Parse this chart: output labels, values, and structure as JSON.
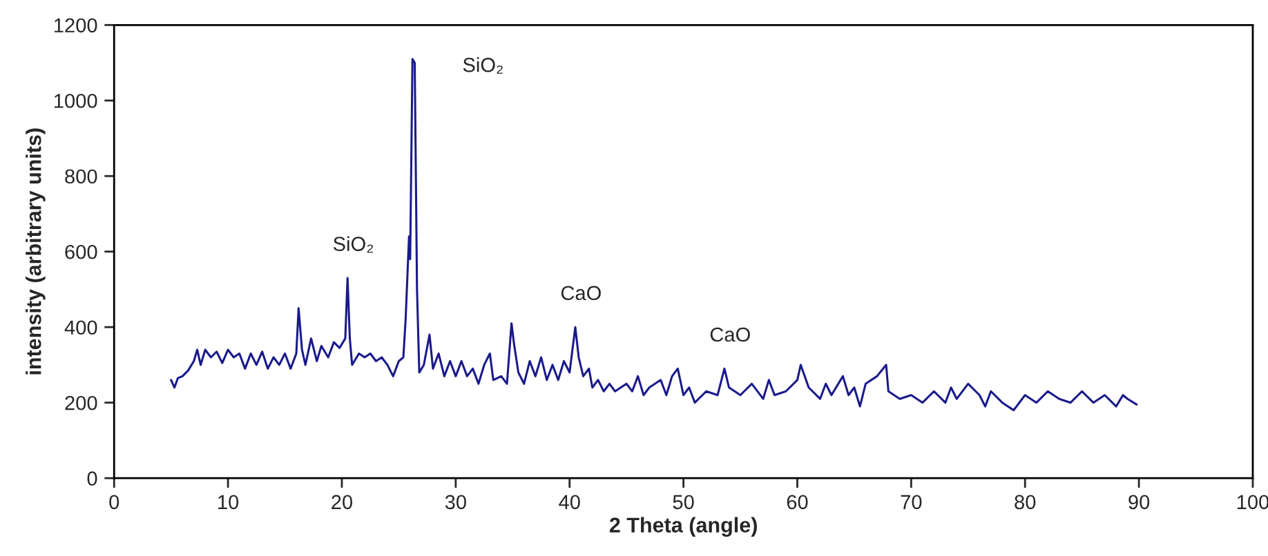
{
  "chart_data": {
    "type": "line",
    "xlabel": "2 Theta (angle)",
    "ylabel": "intensity (arbitrary units)",
    "xlim": [
      0,
      100
    ],
    "xticks": [
      0,
      10,
      20,
      30,
      40,
      50,
      60,
      70,
      80,
      90,
      100
    ],
    "ylim": [
      0,
      1200
    ],
    "yticks": [
      0,
      200,
      400,
      600,
      800,
      1000,
      1200
    ],
    "grid": false,
    "marker": "none",
    "line_style": "solid",
    "annotations": [
      {
        "text": "SiO₂",
        "x": 26.2,
        "y": 1110
      },
      {
        "text": "SiO₂",
        "x": 20.5,
        "y": 530
      },
      {
        "text": "CaO",
        "x": 40.5,
        "y": 400
      },
      {
        "text": "CaO",
        "x": 53.6,
        "y": 290
      }
    ],
    "series": [
      {
        "color": "#1a1a8c",
        "x": [
          5.0,
          5.3,
          5.6,
          6,
          6.5,
          7,
          7.3,
          7.6,
          8,
          8.5,
          9,
          9.5,
          10,
          10.5,
          11,
          11.5,
          12,
          12.5,
          13,
          13.5,
          14,
          14.5,
          15,
          15.5,
          16,
          16.2,
          16.5,
          16.8,
          17.3,
          17.8,
          18.2,
          18.8,
          19.3,
          19.8,
          20.3,
          20.5,
          20.7,
          20.9,
          21.5,
          22,
          22.5,
          23,
          23.5,
          24,
          24.5,
          25,
          25.4,
          25.6,
          25.9,
          26.0,
          26.2,
          26.4,
          26.6,
          26.8,
          27.2,
          27.7,
          28,
          28.5,
          29,
          29.5,
          30,
          30.5,
          31,
          31.5,
          32,
          32.5,
          33,
          33.3,
          34,
          34.5,
          34.9,
          35.1,
          35.5,
          36,
          36.5,
          37,
          37.5,
          38,
          38.5,
          39,
          39.5,
          40,
          40.5,
          40.8,
          41.2,
          41.7,
          42,
          42.5,
          43,
          43.5,
          44,
          45,
          45.5,
          46,
          46.5,
          47,
          48,
          48.5,
          49,
          49.5,
          50,
          50.5,
          51,
          52,
          53,
          53.6,
          54,
          55,
          56,
          57,
          57.5,
          58,
          59,
          60,
          60.3,
          61,
          62,
          62.5,
          63,
          64,
          64.5,
          65,
          65.5,
          66,
          67,
          67.8,
          68,
          69,
          70,
          71,
          72,
          73,
          73.5,
          74,
          75,
          76,
          76.5,
          77,
          78,
          79,
          80,
          81,
          82,
          83,
          84,
          85,
          86,
          87,
          88,
          88.6,
          89,
          89.8
        ],
        "values": [
          260,
          240,
          265,
          270,
          285,
          310,
          340,
          300,
          340,
          320,
          335,
          305,
          340,
          320,
          330,
          290,
          330,
          300,
          335,
          290,
          320,
          300,
          330,
          290,
          330,
          450,
          340,
          300,
          370,
          310,
          350,
          320,
          360,
          345,
          370,
          530,
          370,
          300,
          330,
          320,
          330,
          310,
          320,
          300,
          270,
          310,
          320,
          420,
          640,
          580,
          1110,
          1100,
          500,
          280,
          300,
          380,
          290,
          330,
          270,
          310,
          270,
          310,
          270,
          290,
          250,
          300,
          330,
          260,
          270,
          250,
          410,
          360,
          280,
          250,
          310,
          270,
          320,
          260,
          300,
          260,
          310,
          280,
          400,
          320,
          270,
          290,
          240,
          260,
          230,
          250,
          230,
          250,
          230,
          270,
          220,
          240,
          260,
          220,
          270,
          290,
          220,
          240,
          200,
          230,
          220,
          290,
          240,
          220,
          250,
          210,
          260,
          220,
          230,
          260,
          300,
          240,
          210,
          250,
          220,
          270,
          220,
          240,
          190,
          250,
          270,
          300,
          230,
          210,
          220,
          200,
          230,
          200,
          240,
          210,
          250,
          220,
          190,
          230,
          200,
          180,
          220,
          200,
          230,
          210,
          200,
          230,
          200,
          220,
          190,
          220,
          210,
          195
        ]
      }
    ]
  }
}
